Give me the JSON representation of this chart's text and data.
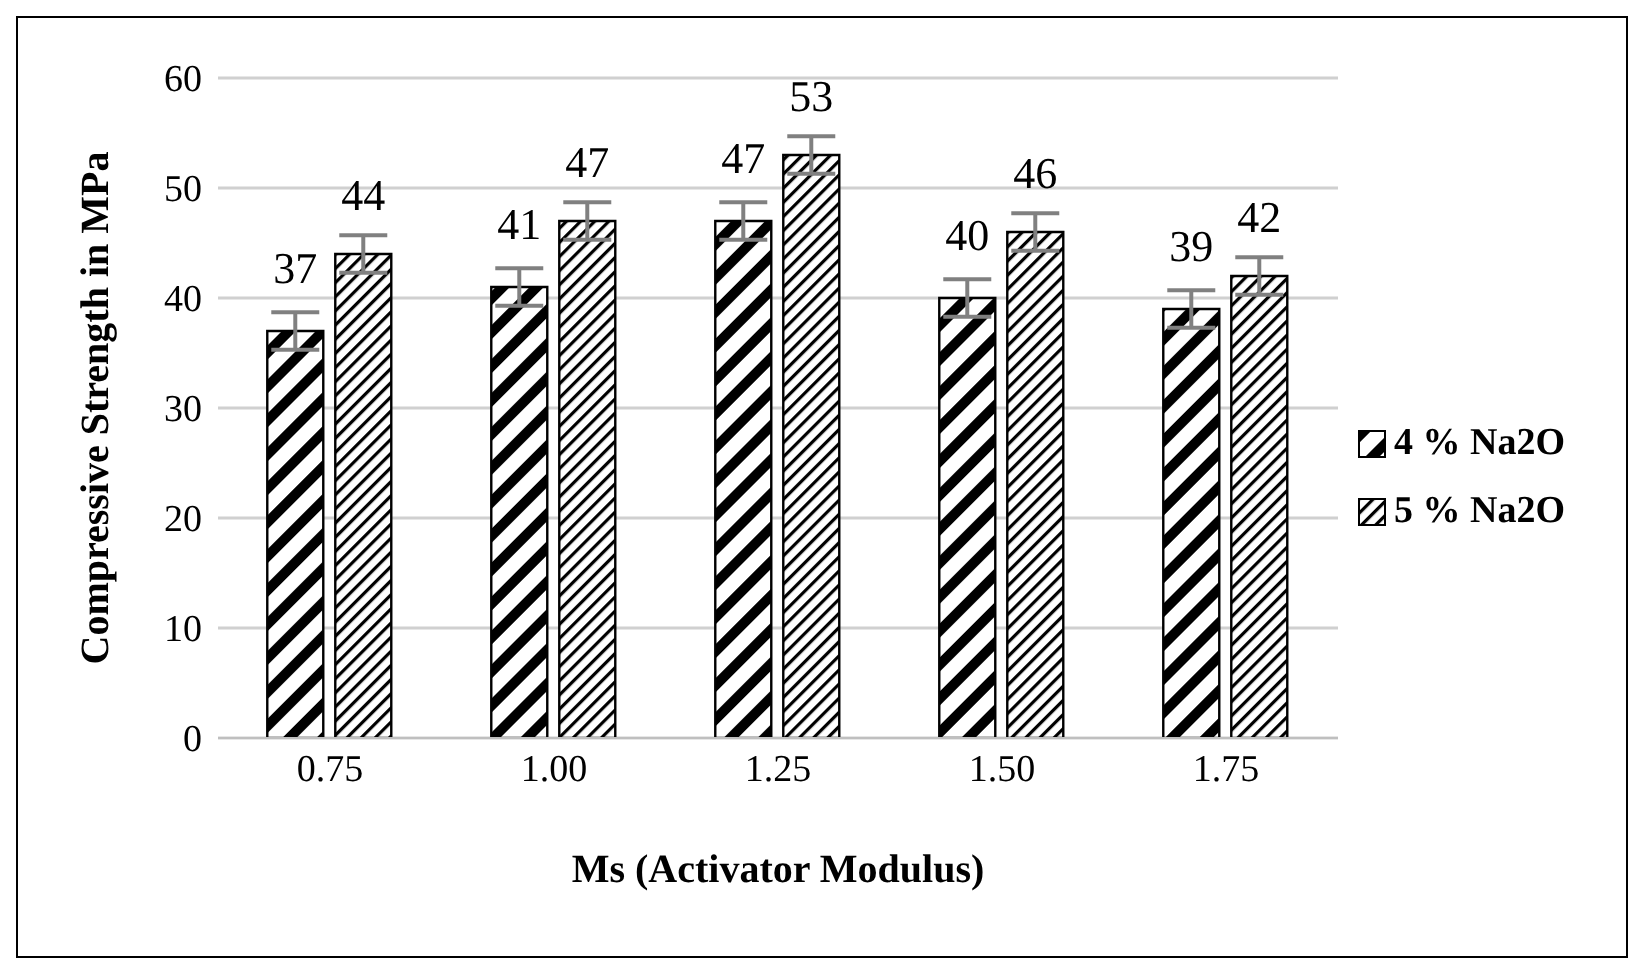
{
  "chart_data": {
    "type": "bar",
    "xlabel": "Ms (Activator Modulus)",
    "ylabel": "Compressive Strength in MPa",
    "categories": [
      "0.75",
      "1.00",
      "1.25",
      "1.50",
      "1.75"
    ],
    "series": [
      {
        "name": "4 % Na2O",
        "color": "#000000",
        "values": [
          37,
          41,
          47,
          40,
          39
        ],
        "errors": [
          1.7,
          1.7,
          1.7,
          1.7,
          1.7
        ]
      },
      {
        "name": "5 % Na2O",
        "color": "#000000",
        "values": [
          44,
          47,
          53,
          46,
          42
        ],
        "errors": [
          1.7,
          1.7,
          1.7,
          1.7,
          1.7
        ]
      }
    ],
    "ylim": [
      0,
      60
    ],
    "yticks": [
      0,
      10,
      20,
      30,
      40,
      50,
      60
    ],
    "grid": "y",
    "legend": "right",
    "data_labels": true
  }
}
